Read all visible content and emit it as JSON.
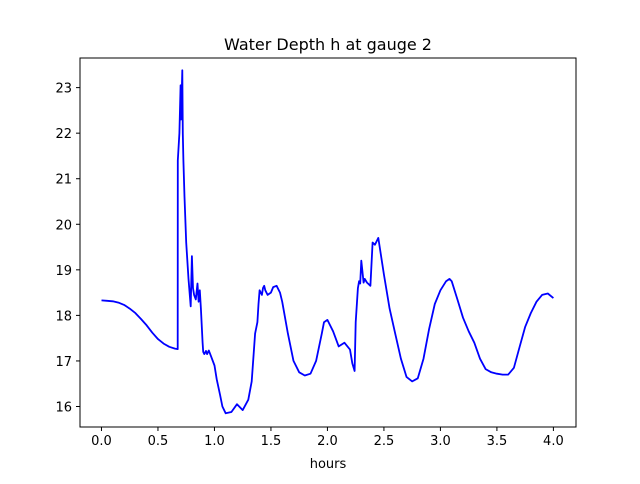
{
  "chart_data": {
    "type": "line",
    "title": "Water Depth h at gauge 2",
    "xlabel": "hours",
    "ylabel": "",
    "xlim": [
      -0.19,
      4.2
    ],
    "ylim": [
      15.55,
      23.65
    ],
    "xticks": [
      0.0,
      0.5,
      1.0,
      1.5,
      2.0,
      2.5,
      3.0,
      3.5,
      4.0
    ],
    "xtick_labels": [
      "0.0",
      "0.5",
      "1.0",
      "1.5",
      "2.0",
      "2.5",
      "3.0",
      "3.5",
      "4.0"
    ],
    "yticks": [
      16,
      17,
      18,
      19,
      20,
      21,
      22,
      23
    ],
    "ytick_labels": [
      "16",
      "17",
      "18",
      "19",
      "20",
      "21",
      "22",
      "23"
    ],
    "grid": false,
    "series": [
      {
        "color": "#0000ff",
        "x": [
          0.0,
          0.05,
          0.1,
          0.15,
          0.2,
          0.25,
          0.3,
          0.35,
          0.4,
          0.45,
          0.5,
          0.55,
          0.6,
          0.65,
          0.675,
          0.676,
          0.69,
          0.7,
          0.705,
          0.715,
          0.72,
          0.725,
          0.735,
          0.75,
          0.77,
          0.79,
          0.8,
          0.81,
          0.82,
          0.835,
          0.85,
          0.86,
          0.87,
          0.88,
          0.895,
          0.9,
          0.91,
          0.925,
          0.935,
          0.95,
          0.97,
          1.0,
          1.02,
          1.05,
          1.07,
          1.1,
          1.15,
          1.2,
          1.25,
          1.3,
          1.33,
          1.36,
          1.38,
          1.39,
          1.4,
          1.42,
          1.43,
          1.44,
          1.45,
          1.47,
          1.5,
          1.52,
          1.55,
          1.58,
          1.6,
          1.65,
          1.7,
          1.75,
          1.8,
          1.85,
          1.9,
          1.95,
          1.97,
          2.0,
          2.05,
          2.1,
          2.15,
          2.2,
          2.22,
          2.24,
          2.25,
          2.27,
          2.28,
          2.29,
          2.3,
          2.32,
          2.33,
          2.35,
          2.38,
          2.4,
          2.42,
          2.45,
          2.5,
          2.55,
          2.6,
          2.65,
          2.7,
          2.75,
          2.8,
          2.85,
          2.9,
          2.95,
          3.0,
          3.05,
          3.08,
          3.1,
          3.15,
          3.2,
          3.25,
          3.3,
          3.35,
          3.4,
          3.45,
          3.5,
          3.55,
          3.6,
          3.65,
          3.7,
          3.75,
          3.8,
          3.85,
          3.9,
          3.95,
          4.0
        ],
        "y": [
          18.33,
          18.32,
          18.31,
          18.28,
          18.23,
          18.15,
          18.05,
          17.92,
          17.78,
          17.62,
          17.48,
          17.38,
          17.31,
          17.27,
          17.26,
          21.4,
          22.0,
          23.05,
          22.3,
          23.38,
          22.0,
          21.4,
          20.6,
          19.6,
          18.8,
          18.2,
          19.3,
          18.6,
          18.45,
          18.35,
          18.7,
          18.3,
          18.55,
          18.15,
          17.4,
          17.2,
          17.15,
          17.22,
          17.15,
          17.23,
          17.1,
          16.9,
          16.6,
          16.25,
          16.0,
          15.85,
          15.88,
          16.05,
          15.92,
          16.15,
          16.55,
          17.6,
          17.85,
          18.25,
          18.55,
          18.45,
          18.6,
          18.65,
          18.55,
          18.45,
          18.5,
          18.62,
          18.65,
          18.5,
          18.3,
          17.6,
          17.0,
          16.75,
          16.68,
          16.72,
          17.0,
          17.6,
          17.85,
          17.9,
          17.65,
          17.32,
          17.4,
          17.25,
          16.95,
          16.78,
          17.85,
          18.6,
          18.75,
          18.7,
          19.2,
          18.72,
          18.8,
          18.72,
          18.65,
          19.6,
          19.55,
          19.7,
          18.9,
          18.15,
          17.6,
          17.05,
          16.65,
          16.55,
          16.62,
          17.05,
          17.7,
          18.25,
          18.55,
          18.75,
          18.8,
          18.75,
          18.35,
          17.95,
          17.65,
          17.4,
          17.05,
          16.82,
          16.75,
          16.72,
          16.7,
          16.7,
          16.85,
          17.3,
          17.75,
          18.05,
          18.3,
          18.45,
          18.48,
          18.38
        ]
      }
    ]
  }
}
